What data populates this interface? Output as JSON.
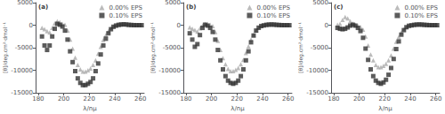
{
  "chart_data": [
    {
      "type": "scatter",
      "title": "(a)",
      "xlabel": "λ/nμ",
      "ylabel": "[θ]/deg.cm²·dmol⁻¹",
      "xlim": [
        178,
        263
      ],
      "ylim": [
        -15000,
        5000
      ],
      "xticks": [
        180,
        200,
        220,
        240,
        260
      ],
      "yticks": [
        -15000,
        -10000,
        -5000,
        0,
        5000
      ],
      "grid": false,
      "legend": "upper right",
      "series": [
        {
          "name": "0.00% EPS",
          "color": "#aaaaaa",
          "marker": "triangle",
          "x": [
            183,
            185,
            187,
            189,
            191,
            193,
            195,
            197,
            199,
            201,
            203,
            205,
            207,
            209,
            211,
            213,
            215,
            217,
            219,
            221,
            223,
            225,
            227,
            229,
            231,
            233,
            235,
            237,
            239,
            241,
            243,
            245,
            247,
            249,
            251,
            253,
            255,
            257,
            259,
            261
          ],
          "values": [
            -600,
            -900,
            -1300,
            -1600,
            -600,
            400,
            900,
            700,
            300,
            100,
            -1200,
            -3200,
            -5200,
            -7200,
            -8800,
            -9800,
            -10300,
            -10300,
            -10000,
            -9600,
            -8800,
            -7800,
            -6300,
            -4800,
            -3300,
            -2200,
            -1300,
            -700,
            -250,
            -80,
            80,
            150,
            200,
            150,
            80,
            60,
            20,
            0,
            0,
            0
          ]
        },
        {
          "name": "0.10% EPS",
          "color": "#333333",
          "marker": "square",
          "x": [
            183,
            185,
            187,
            189,
            191,
            193,
            195,
            197,
            199,
            201,
            203,
            205,
            207,
            209,
            211,
            213,
            215,
            217,
            219,
            221,
            223,
            225,
            227,
            229,
            231,
            233,
            235,
            237,
            239,
            241,
            243,
            245,
            247,
            249,
            251,
            253,
            255,
            257,
            259,
            261
          ],
          "values": [
            -2500,
            -4500,
            -5500,
            -4500,
            -2500,
            -800,
            300,
            100,
            -300,
            -1200,
            -3200,
            -5800,
            -8200,
            -10200,
            -11800,
            -12800,
            -13300,
            -13300,
            -13000,
            -12600,
            -11800,
            -10200,
            -8500,
            -6500,
            -4500,
            -3000,
            -1800,
            -900,
            -350,
            -80,
            80,
            150,
            200,
            150,
            80,
            40,
            10,
            0,
            0,
            0
          ]
        }
      ]
    },
    {
      "type": "scatter",
      "title": "(b)",
      "xlabel": "λ/nμ",
      "ylabel": "[θ]/deg.cm²·dmol⁻¹",
      "xlim": [
        178,
        263
      ],
      "ylim": [
        -15000,
        5000
      ],
      "xticks": [
        180,
        200,
        220,
        240,
        260
      ],
      "yticks": [
        -15000,
        -10000,
        -5000,
        0,
        5000
      ],
      "grid": false,
      "legend": "upper right",
      "series": [
        {
          "name": "0.00% EPS",
          "color": "#aaaaaa",
          "marker": "triangle",
          "x": [
            183,
            185,
            187,
            189,
            191,
            193,
            195,
            197,
            199,
            201,
            203,
            205,
            207,
            209,
            211,
            213,
            215,
            217,
            219,
            221,
            223,
            225,
            227,
            229,
            231,
            233,
            235,
            237,
            239,
            241,
            243,
            245,
            247,
            249,
            251,
            253,
            255,
            257,
            259,
            261
          ],
          "values": [
            -500,
            -800,
            -1100,
            -1400,
            -700,
            -100,
            300,
            300,
            100,
            -200,
            -1500,
            -3500,
            -5500,
            -7300,
            -8700,
            -9700,
            -10200,
            -10200,
            -9900,
            -9500,
            -8700,
            -7700,
            -6200,
            -4700,
            -3200,
            -2100,
            -1200,
            -600,
            -200,
            -50,
            80,
            130,
            160,
            130,
            80,
            50,
            10,
            0,
            0,
            0
          ]
        },
        {
          "name": "0.10% EPS",
          "color": "#333333",
          "marker": "square",
          "x": [
            183,
            185,
            187,
            189,
            191,
            193,
            195,
            197,
            199,
            201,
            203,
            205,
            207,
            209,
            211,
            213,
            215,
            217,
            219,
            221,
            223,
            225,
            227,
            229,
            231,
            233,
            235,
            237,
            239,
            241,
            243,
            245,
            247,
            249,
            251,
            253,
            255,
            257,
            259,
            261
          ],
          "values": [
            -1800,
            -3200,
            -4800,
            -4200,
            -2200,
            -600,
            100,
            -100,
            -600,
            -1500,
            -3200,
            -5500,
            -7800,
            -9800,
            -11300,
            -12300,
            -12800,
            -13000,
            -12800,
            -12300,
            -11300,
            -9800,
            -7800,
            -5800,
            -3800,
            -2300,
            -1200,
            -550,
            -180,
            -40,
            80,
            130,
            160,
            130,
            80,
            40,
            10,
            0,
            0,
            0
          ]
        }
      ]
    },
    {
      "type": "scatter",
      "title": "(c)",
      "xlabel": "λ/nμ",
      "ylabel": "[θ]/deg.cm²·dmol⁻¹",
      "xlim": [
        178,
        263
      ],
      "ylim": [
        -15000,
        5000
      ],
      "xticks": [
        180,
        200,
        220,
        240,
        260
      ],
      "yticks": [
        -15000,
        -10000,
        -5000,
        0,
        5000
      ],
      "grid": false,
      "legend": "upper right",
      "series": [
        {
          "name": "0.00% EPS",
          "color": "#aaaaaa",
          "marker": "triangle",
          "x": [
            183,
            185,
            187,
            189,
            191,
            193,
            195,
            197,
            199,
            201,
            203,
            205,
            207,
            209,
            211,
            213,
            215,
            217,
            219,
            221,
            223,
            225,
            227,
            229,
            231,
            233,
            235,
            237,
            239,
            241,
            243,
            245,
            247,
            249,
            251,
            253,
            255,
            257,
            259,
            261
          ],
          "values": [
            100,
            300,
            1200,
            1800,
            1500,
            900,
            400,
            100,
            -100,
            -400,
            -1000,
            -2500,
            -4500,
            -6500,
            -7800,
            -8800,
            -9300,
            -9300,
            -9000,
            -8600,
            -7800,
            -6700,
            -5200,
            -3700,
            -2600,
            -1600,
            -900,
            -400,
            -120,
            -30,
            80,
            130,
            160,
            130,
            80,
            50,
            10,
            0,
            0,
            0
          ]
        },
        {
          "name": "0.10% EPS",
          "color": "#333333",
          "marker": "square",
          "x": [
            183,
            185,
            187,
            189,
            191,
            193,
            195,
            197,
            199,
            201,
            203,
            205,
            207,
            209,
            211,
            213,
            215,
            217,
            219,
            221,
            223,
            225,
            227,
            229,
            231,
            233,
            235,
            237,
            239,
            241,
            243,
            245,
            247,
            249,
            251,
            253,
            255,
            257,
            259,
            261
          ],
          "values": [
            -600,
            -800,
            -900,
            -800,
            -500,
            -100,
            100,
            -100,
            -600,
            -1300,
            -2800,
            -5200,
            -7700,
            -9800,
            -11300,
            -12300,
            -12800,
            -13000,
            -12700,
            -12100,
            -11000,
            -9500,
            -7500,
            -5300,
            -3600,
            -2100,
            -1100,
            -450,
            -130,
            -30,
            80,
            130,
            160,
            130,
            80,
            40,
            10,
            0,
            0,
            0
          ]
        }
      ]
    }
  ]
}
